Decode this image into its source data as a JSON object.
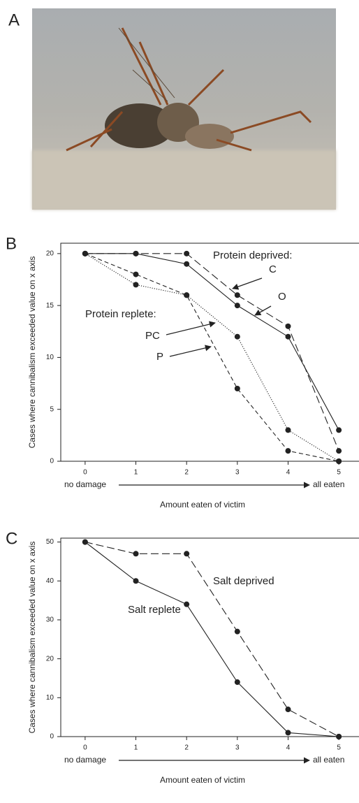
{
  "panel_labels": [
    "A",
    "B",
    "C"
  ],
  "chart_data": [
    {
      "type": "line",
      "ylabel": "Cases where cannibalism exceeded value on x axis",
      "xlabel": "Amount eaten of victim",
      "x_start_label": "no damage",
      "x_end_label": "all eaten",
      "x": [
        0,
        1,
        2,
        3,
        4,
        5
      ],
      "xlim": [
        -0.48,
        5.37
      ],
      "xticks": [
        0,
        1,
        2,
        3,
        4,
        5
      ],
      "ylim": [
        0,
        21
      ],
      "yticks": [
        0,
        5,
        10,
        15,
        20
      ],
      "annotations": [
        "Protein deprived:",
        "Protein replete:"
      ],
      "series": [
        {
          "name": "C",
          "color": "#222222",
          "dash": "long-dash",
          "values": [
            20,
            20,
            20,
            16,
            13,
            1
          ]
        },
        {
          "name": "O",
          "color": "#222222",
          "dash": "solid",
          "values": [
            20,
            20,
            19,
            15,
            12,
            3
          ]
        },
        {
          "name": "PC",
          "color": "#222222",
          "dash": "dotted",
          "values": [
            20,
            17,
            16,
            12,
            3,
            0
          ]
        },
        {
          "name": "P",
          "color": "#222222",
          "dash": "dashed",
          "values": [
            20,
            18,
            16,
            7,
            1,
            0
          ]
        }
      ]
    },
    {
      "type": "line",
      "ylabel": "Cases where cannibalism exceeded value on x axis",
      "xlabel": "Amount eaten of victim",
      "x_start_label": "no damage",
      "x_end_label": "all eaten",
      "x": [
        0,
        1,
        2,
        3,
        4,
        5
      ],
      "xlim": [
        -0.48,
        5.37
      ],
      "xticks": [
        0,
        1,
        2,
        3,
        4,
        5
      ],
      "ylim": [
        0,
        51
      ],
      "yticks": [
        0,
        10,
        20,
        30,
        40,
        50
      ],
      "annotations": [],
      "series": [
        {
          "name": "Salt deprived",
          "color": "#222222",
          "dash": "long-dash",
          "values": [
            50,
            47,
            47,
            27,
            7,
            0
          ]
        },
        {
          "name": "Salt replete",
          "color": "#222222",
          "dash": "solid",
          "values": [
            50,
            40,
            34,
            14,
            1,
            0
          ]
        }
      ]
    }
  ]
}
